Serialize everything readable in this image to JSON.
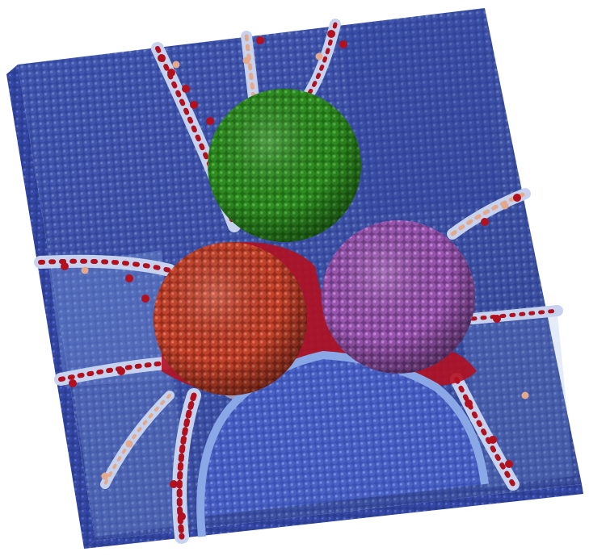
{
  "colors": {
    "background": "#ffffff",
    "slab_dark": "#2c3f9a",
    "slab_mid": "#3f56b8",
    "slab_light": "#7f9ee0",
    "boundary_pale": "#dccbc4",
    "boundary_peach": "#e4a98c",
    "defect_red": "#b3101f",
    "sphere_green": "#2e8a1f",
    "sphere_red": "#c2402a",
    "sphere_purple": "#9b56b0"
  },
  "objects": [
    {
      "name": "atomic-slab",
      "color_key": "slab_mid"
    },
    {
      "name": "green-sphere",
      "color_key": "sphere_green"
    },
    {
      "name": "red-sphere",
      "color_key": "sphere_red"
    },
    {
      "name": "purple-sphere",
      "color_key": "sphere_purple"
    }
  ]
}
